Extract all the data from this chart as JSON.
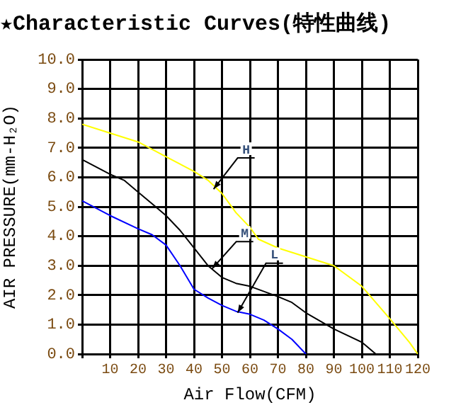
{
  "chart_data": {
    "type": "line",
    "title": "★Characteristic Curves(特性曲线)",
    "xlabel": "Air Flow(CFM)",
    "ylabel": "AIR PRESSURE(mm-H₂O)",
    "xlim": [
      0,
      120
    ],
    "xticks": [
      {
        "value": 0,
        "label": null
      },
      10,
      20,
      30,
      40,
      50,
      60,
      70,
      80,
      90,
      100,
      110,
      120
    ],
    "ylim": [
      0,
      10
    ],
    "yticks": [
      {
        "value": 0,
        "label": "0.0"
      },
      {
        "value": 1,
        "label": "1.0"
      },
      {
        "value": 2,
        "label": "2.0"
      },
      {
        "value": 3,
        "label": "3.0"
      },
      {
        "value": 4,
        "label": "4.0"
      },
      {
        "value": 5,
        "label": "5.0"
      },
      {
        "value": 6,
        "label": "6.0"
      },
      {
        "value": 7,
        "label": "7.0"
      },
      {
        "value": 8,
        "label": "8.0"
      },
      {
        "value": 9,
        "label": "9.0"
      },
      {
        "value": 10,
        "label": "10.0"
      }
    ],
    "grid": true,
    "legend": false,
    "marker": "none",
    "line_style": "solid",
    "series": [
      {
        "color": "#ffff00",
        "x": [
          0,
          10,
          20,
          30,
          40,
          45,
          50,
          55,
          60,
          63,
          70,
          80,
          90,
          100,
          110,
          117,
          120
        ],
        "values": [
          7.8,
          7.5,
          7.2,
          6.7,
          6.2,
          5.9,
          5.45,
          4.8,
          4.3,
          3.9,
          3.6,
          3.3,
          3.0,
          2.3,
          1.2,
          0.4,
          0
        ]
      },
      {
        "color": "#000000",
        "x": [
          0,
          10,
          15,
          20,
          25,
          30,
          35,
          40,
          45,
          50,
          55,
          60,
          70,
          75,
          80,
          90,
          100,
          105
        ],
        "values": [
          6.6,
          6.1,
          5.9,
          5.5,
          5.1,
          4.7,
          4.2,
          3.6,
          3.0,
          2.6,
          2.4,
          2.3,
          1.95,
          1.75,
          1.4,
          0.85,
          0.4,
          0
        ]
      },
      {
        "color": "#0000ff",
        "x": [
          0,
          10,
          20,
          25,
          30,
          35,
          40,
          45,
          50,
          55,
          60,
          65,
          70,
          75,
          80
        ],
        "values": [
          5.2,
          4.7,
          4.25,
          4.05,
          3.7,
          3.0,
          2.2,
          1.9,
          1.65,
          1.45,
          1.35,
          1.15,
          0.85,
          0.5,
          0
        ]
      }
    ],
    "annotations": [
      {
        "text": "H",
        "x": 47,
        "y": 5.6
      },
      {
        "text": "M",
        "x": 46.5,
        "y": 2.9
      },
      {
        "text": "L",
        "x": 55.6,
        "y": 1.4
      }
    ]
  }
}
